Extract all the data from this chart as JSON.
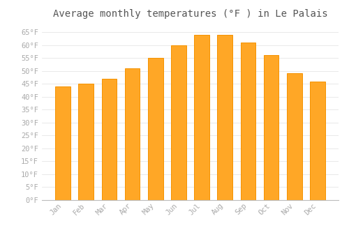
{
  "title": "Average monthly temperatures (°F ) in Le Palais",
  "months": [
    "Jan",
    "Feb",
    "Mar",
    "Apr",
    "May",
    "Jun",
    "Jul",
    "Aug",
    "Sep",
    "Oct",
    "Nov",
    "Dec"
  ],
  "values": [
    44,
    45,
    47,
    51,
    55,
    60,
    64,
    64,
    61,
    56,
    49,
    46
  ],
  "bar_color": "#FFA726",
  "bar_edge_color": "#F59300",
  "background_color": "#FFFFFF",
  "grid_color": "#E0E0E0",
  "yticks": [
    0,
    5,
    10,
    15,
    20,
    25,
    30,
    35,
    40,
    45,
    50,
    55,
    60,
    65
  ],
  "ylim": [
    0,
    68
  ],
  "title_fontsize": 10,
  "tick_fontsize": 7.5,
  "tick_color": "#AAAAAA",
  "title_color": "#555555"
}
